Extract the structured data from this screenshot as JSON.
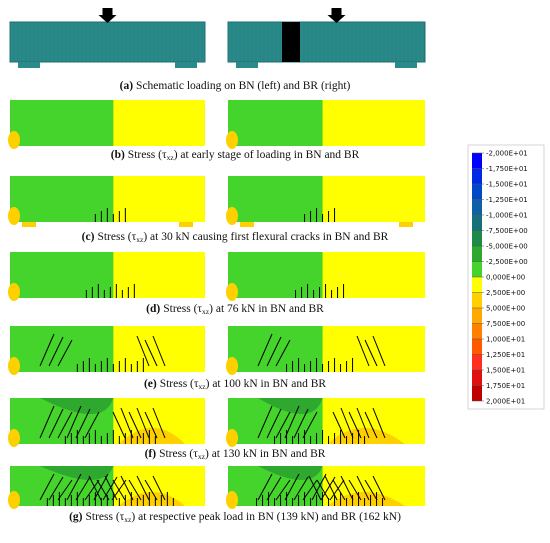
{
  "panels": [
    {
      "label": "(a)",
      "text": "Schematic loading on BN (left) and BR (right)"
    },
    {
      "label": "(b)",
      "before": "Stress (τ",
      "sub": "xz",
      "after": ") at early stage of loading in BN and BR"
    },
    {
      "label": "(c)",
      "before": "Stress (τ",
      "sub": "xz",
      "after": ") at 30 kN causing first flexural cracks in BN and BR"
    },
    {
      "label": "(d)",
      "before": "Stress (τ",
      "sub": "xz",
      "after": ") at 76 kN in BN and BR"
    },
    {
      "label": "(e)",
      "before": "Stress (τ",
      "sub": "xz",
      "after": ") at 100 kN in BN and BR"
    },
    {
      "label": "(f)",
      "before": "Stress (τ",
      "sub": "xz",
      "after": ") at 130 kN in BN and BR"
    },
    {
      "label": "(g)",
      "before": "Stress (τ",
      "sub": "xz",
      "after": ") at respective peak load in BN (139 kN) and BR (162 kN)"
    }
  ],
  "legend": {
    "labels": [
      "-2,000E+01",
      "-1,750E+01",
      "-1,500E+01",
      "-1,250E+01",
      "-1,000E+01",
      "-7,500E+00",
      "-5,000E+00",
      "-2,500E+00",
      "0,000E+00",
      "2,500E+00",
      "5,000E+00",
      "7,500E+00",
      "1,000E+01",
      "1,250E+01",
      "1,500E+01",
      "1,750E+01",
      "2,000E+01"
    ],
    "colors": [
      "#0000ff",
      "#0028e6",
      "#0048c8",
      "#1060a8",
      "#16707a",
      "#1e8a4a",
      "#2ea82e",
      "#44d42c",
      "#ffff00",
      "#ffd000",
      "#ffa800",
      "#ff8000",
      "#ff5a00",
      "#ff3020",
      "#e01010",
      "#c00000"
    ]
  }
}
